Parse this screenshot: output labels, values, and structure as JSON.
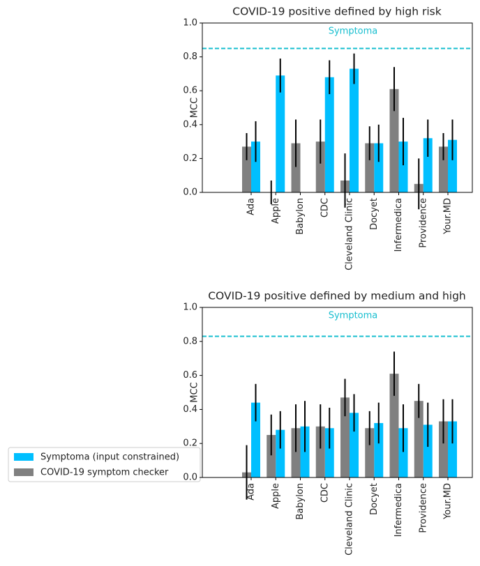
{
  "chart_data": [
    {
      "type": "bar",
      "title": "COVID-19 positive defined by high risk",
      "y_label": "MCC",
      "categories": [
        "Ada",
        "Apple",
        "Babylon",
        "CDC",
        "Cleveland Clinic",
        "Docyet",
        "Infermedica",
        "Providence",
        "Your.MD"
      ],
      "series": [
        {
          "name": "Symptoma (input constrained)",
          "color": "#00bfff",
          "values": [
            0.3,
            0.69,
            null,
            0.68,
            0.73,
            0.29,
            0.3,
            0.32,
            0.31
          ],
          "errors": [
            0.12,
            0.1,
            null,
            0.1,
            0.09,
            0.11,
            0.14,
            0.11,
            0.12
          ]
        },
        {
          "name": "COVID-19 symptom checker",
          "color": "#808080",
          "values": [
            0.27,
            0,
            0.29,
            0.3,
            0.07,
            0.29,
            0.61,
            0.05,
            0.27
          ],
          "errors": [
            0.08,
            0.07,
            0.14,
            0.13,
            0.16,
            0.1,
            0.13,
            0.15,
            0.08
          ]
        }
      ],
      "reference_line": {
        "value": 0.85,
        "label": "Symptoma",
        "color": "#17becf"
      },
      "ylim": [
        0,
        1.0
      ],
      "yticks": [
        {
          "value": 0,
          "label": "0.0"
        },
        0.2,
        0.4,
        0.6,
        0.8,
        {
          "value": 1,
          "label": "1.0"
        }
      ]
    },
    {
      "type": "bar",
      "title": "COVID-19 positive defined by medium and high",
      "y_label": "MCC",
      "categories": [
        "Ada",
        "Apple",
        "Babylon",
        "CDC",
        "Cleveland Clinic",
        "Docyet",
        "Infermedica",
        "Providence",
        "Your.MD"
      ],
      "series": [
        {
          "color": "#00bfff",
          "values": [
            0.44,
            0.28,
            0.3,
            0.29,
            0.38,
            0.32,
            0.29,
            0.31,
            0.33
          ],
          "errors": [
            0.11,
            0.11,
            0.15,
            0.12,
            0.11,
            0.12,
            0.14,
            0.13,
            0.13
          ]
        },
        {
          "color": "#808080",
          "values": [
            0.03,
            0.25,
            0.29,
            0.3,
            0.47,
            0.29,
            0.61,
            0.45,
            0.33
          ],
          "errors": [
            0.16,
            0.12,
            0.14,
            0.13,
            0.11,
            0.1,
            0.13,
            0.1,
            0.13
          ]
        }
      ],
      "reference_line": {
        "value": 0.83,
        "label": "Symptoma",
        "color": "#17becf"
      },
      "ylim": [
        0,
        1.0
      ],
      "yticks": [
        {
          "value": 0,
          "label": "0.0"
        },
        0.2,
        0.4,
        0.6,
        0.8,
        {
          "value": 1,
          "label": "1.0"
        }
      ]
    }
  ]
}
